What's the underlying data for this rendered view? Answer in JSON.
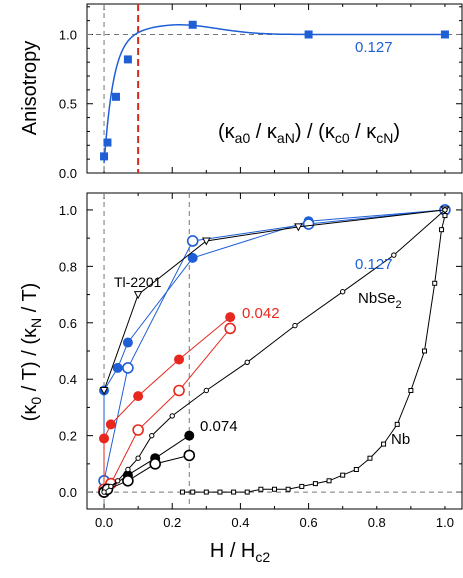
{
  "chart_data": [
    {
      "type": "line",
      "ylabel": "Anisotropy",
      "formula": {
        "k": "κ",
        "a0": "a0",
        "aN": "aN",
        "c0": "c0",
        "cN": "cN"
      },
      "xlim": [
        -0.05,
        1.05
      ],
      "ylim": [
        0.0,
        1.22
      ],
      "xticks": [
        0,
        0.2,
        0.4,
        0.6,
        0.8,
        1.0
      ],
      "yticks": [
        0.0,
        0.5,
        1.0
      ],
      "ytick_labels": [
        "0.0",
        "0.5",
        "1.0"
      ],
      "reference_lines": {
        "horizontal": 1.0,
        "vertical_gray": 0.0,
        "vertical_red": 0.1
      },
      "series": [
        {
          "label": "0.127",
          "color": "#1f5fd6",
          "marker": "filled-square",
          "x": [
            0.0,
            0.01,
            0.035,
            0.07,
            0.26,
            0.6,
            1.0
          ],
          "y": [
            0.12,
            0.22,
            0.55,
            0.82,
            1.07,
            1.0,
            1.0
          ],
          "fit_curve": true
        }
      ]
    },
    {
      "type": "line",
      "xlabel": "H / H",
      "xlabel_sub": "c2",
      "ylabel": "(κ",
      "ylabel_parts": [
        "0",
        " / T) / (κ",
        "N",
        " / T)"
      ],
      "xlim": [
        -0.05,
        1.05
      ],
      "ylim": [
        -0.06,
        1.06
      ],
      "xticks": [
        0.0,
        0.2,
        0.4,
        0.6,
        0.8,
        1.0
      ],
      "xtick_labels": [
        "0.0",
        "0.2",
        "0.4",
        "0.6",
        "0.8",
        "1.0"
      ],
      "yticks": [
        0.0,
        0.2,
        0.4,
        0.6,
        0.8,
        1.0
      ],
      "ytick_labels": [
        "0.0",
        "0.2",
        "0.4",
        "0.6",
        "0.8",
        "1.0"
      ],
      "reference_lines": {
        "horizontal": 0.0,
        "vertical_gray": [
          0.0,
          0.25
        ]
      },
      "annotations": {
        "tl": "Tl-2201",
        "nbse2": "NbSe",
        "nbse2_sub": "2",
        "nb": "Nb"
      },
      "series": [
        {
          "label": "0.127",
          "color": "#1f5fd6",
          "marker": "filled-circle",
          "x": [
            0.0,
            0.0,
            0.04,
            0.07,
            0.26,
            0.6,
            1.0
          ],
          "y": [
            0.0,
            0.36,
            0.44,
            0.53,
            0.83,
            0.96,
            1.0
          ]
        },
        {
          "label": "",
          "color": "#1f5fd6",
          "marker": "open-circle",
          "x": [
            0.0,
            0.0,
            0.07,
            0.26,
            0.6,
            1.0
          ],
          "y": [
            0.0,
            0.04,
            0.44,
            0.89,
            0.95,
            1.0
          ]
        },
        {
          "label": "0.042",
          "color": "#e8281e",
          "marker": "filled-circle",
          "x": [
            0.0,
            0.0,
            0.02,
            0.1,
            0.22,
            0.37
          ],
          "y": [
            0.0,
            0.19,
            0.24,
            0.34,
            0.47,
            0.62
          ]
        },
        {
          "label": "",
          "color": "#e8281e",
          "marker": "open-circle",
          "x": [
            0.0,
            0.0,
            0.02,
            0.1,
            0.22,
            0.37
          ],
          "y": [
            0.0,
            0.01,
            0.03,
            0.22,
            0.36,
            0.58
          ]
        },
        {
          "label": "0.074",
          "color": "#000000",
          "marker": "filled-circle",
          "x": [
            0.0,
            0.01,
            0.07,
            0.15,
            0.25
          ],
          "y": [
            0.0,
            0.01,
            0.06,
            0.12,
            0.2
          ]
        },
        {
          "label": "",
          "color": "#000000",
          "marker": "open-circle",
          "x": [
            0.0,
            0.01,
            0.07,
            0.15,
            0.25
          ],
          "y": [
            0.0,
            0.01,
            0.04,
            0.1,
            0.13
          ]
        },
        {
          "label": "Tl-2201",
          "color": "#000000",
          "marker": "open-triangle",
          "x": [
            0.0,
            0.1,
            0.3,
            0.57,
            1.0
          ],
          "y": [
            0.36,
            0.7,
            0.89,
            0.94,
            1.0
          ]
        },
        {
          "label": "NbSe2",
          "color": "#000000",
          "marker": "small-open-circle",
          "x": [
            0.0,
            0.02,
            0.04,
            0.07,
            0.1,
            0.14,
            0.2,
            0.3,
            0.42,
            0.56,
            0.7,
            0.85,
            1.0
          ],
          "y": [
            0.0,
            0.02,
            0.04,
            0.08,
            0.12,
            0.2,
            0.27,
            0.36,
            0.46,
            0.59,
            0.71,
            0.84,
            1.0
          ]
        },
        {
          "label": "Nb",
          "color": "#000000",
          "marker": "small-open-square",
          "x": [
            0.23,
            0.26,
            0.3,
            0.34,
            0.38,
            0.42,
            0.46,
            0.5,
            0.54,
            0.58,
            0.62,
            0.66,
            0.7,
            0.74,
            0.78,
            0.82,
            0.86,
            0.9,
            0.94,
            0.97,
            0.99,
            1.0
          ],
          "y": [
            0.0,
            0.0,
            0.0,
            0.0,
            0.0,
            0.0,
            0.01,
            0.01,
            0.01,
            0.02,
            0.03,
            0.04,
            0.06,
            0.08,
            0.12,
            0.17,
            0.24,
            0.36,
            0.5,
            0.74,
            0.93,
            0.98
          ]
        }
      ]
    }
  ]
}
